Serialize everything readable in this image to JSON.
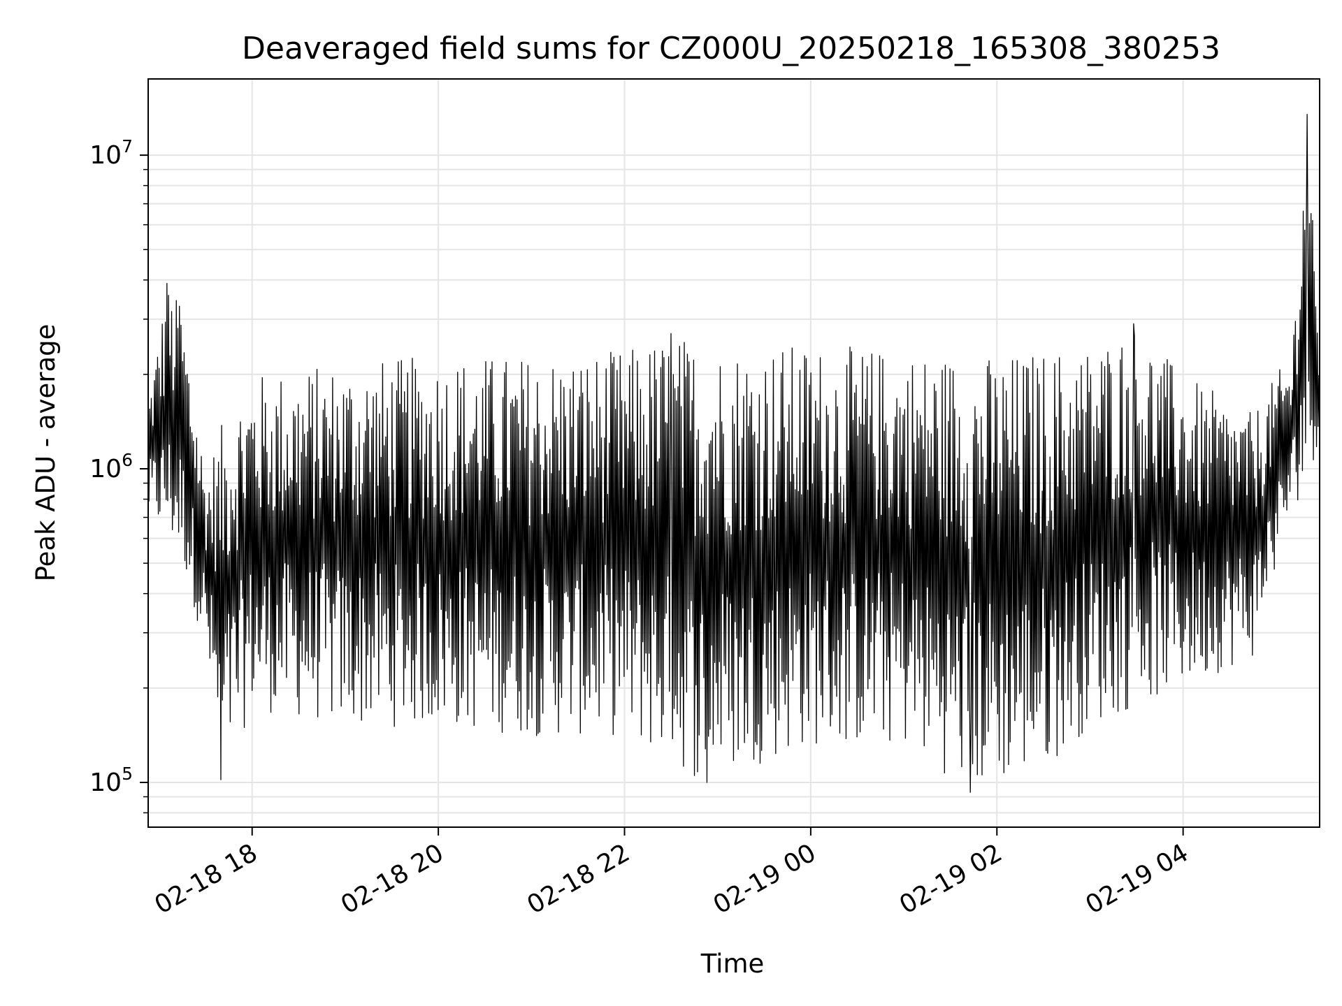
{
  "chart_data": {
    "type": "line",
    "title": "Deaveraged field sums for CZ000U_20250218_165308_380253",
    "xlabel": "Time",
    "ylabel": "Peak ADU - average",
    "xscale": "time",
    "yscale": "log",
    "grid": true,
    "legend": "none",
    "xlim": [
      "2025-02-18 16:53",
      "2025-02-19 05:28"
    ],
    "ylim": [
      72000,
      17500000
    ],
    "x_ticks": [
      "02-18 18",
      "02-18 20",
      "02-18 22",
      "02-19 00",
      "02-19 02",
      "02-19 04"
    ],
    "x_tick_times": [
      "2025-02-18 18:00",
      "2025-02-18 20:00",
      "2025-02-18 22:00",
      "2025-02-19 00:00",
      "2025-02-19 02:00",
      "2025-02-19 04:00"
    ],
    "y_ticks": [
      {
        "value": 100000,
        "base": "10",
        "exponent": "5"
      },
      {
        "value": 1000000,
        "base": "10",
        "exponent": "6"
      },
      {
        "value": 10000000,
        "base": "10",
        "exponent": "7"
      }
    ],
    "line_color": "#000000",
    "grid_color": "#e5e5e5",
    "series": [
      {
        "x_start": "2025-02-18 16:53",
        "x_end": "2025-02-19 05:28",
        "envelope_upper": [
          [
            "2025-02-18 16:53",
            1700000
          ],
          [
            "2025-02-18 17:05",
            3900000
          ],
          [
            "2025-02-18 17:15",
            3300000
          ],
          [
            "2025-02-18 17:30",
            1000000
          ],
          [
            "2025-02-18 17:45",
            1600000
          ],
          [
            "2025-02-18 18:00",
            2000000
          ],
          [
            "2025-02-18 19:00",
            2200000
          ],
          [
            "2025-02-18 20:00",
            2300000
          ],
          [
            "2025-02-18 21:00",
            2300000
          ],
          [
            "2025-02-18 22:00",
            2400000
          ],
          [
            "2025-02-18 22:30",
            2700000
          ],
          [
            "2025-02-18 23:00",
            2500000
          ],
          [
            "2025-02-19 00:00",
            2500000
          ],
          [
            "2025-02-19 01:00",
            2400000
          ],
          [
            "2025-02-19 02:00",
            2300000
          ],
          [
            "2025-02-19 03:00",
            2500000
          ],
          [
            "2025-02-19 03:30",
            2900000
          ],
          [
            "2025-02-19 04:00",
            2000000
          ],
          [
            "2025-02-19 04:45",
            1500000
          ],
          [
            "2025-02-19 05:10",
            2400000
          ],
          [
            "2025-02-19 05:20",
            13500000
          ],
          [
            "2025-02-19 05:28",
            2300000
          ]
        ],
        "envelope_lower": [
          [
            "2025-02-18 16:53",
            700000
          ],
          [
            "2025-02-18 17:15",
            500000
          ],
          [
            "2025-02-18 17:30",
            260000
          ],
          [
            "2025-02-18 17:40",
            100000
          ],
          [
            "2025-02-18 18:00",
            170000
          ],
          [
            "2025-02-18 19:00",
            150000
          ],
          [
            "2025-02-18 20:00",
            150000
          ],
          [
            "2025-02-18 21:00",
            140000
          ],
          [
            "2025-02-18 22:00",
            140000
          ],
          [
            "2025-02-18 22:50",
            100000
          ],
          [
            "2025-02-19 00:00",
            130000
          ],
          [
            "2025-02-19 01:00",
            130000
          ],
          [
            "2025-02-19 01:45",
            93000
          ],
          [
            "2025-02-19 02:30",
            110000
          ],
          [
            "2025-02-19 03:00",
            150000
          ],
          [
            "2025-02-19 04:00",
            200000
          ],
          [
            "2025-02-19 04:45",
            250000
          ],
          [
            "2025-02-19 05:05",
            600000
          ],
          [
            "2025-02-19 05:28",
            1200000
          ]
        ],
        "notable_points": [
          [
            "2025-02-18 17:05",
            3900000
          ],
          [
            "2025-02-18 17:13",
            3300000
          ],
          [
            "2025-02-18 17:40",
            102000
          ],
          [
            "2025-02-18 22:30",
            2700000
          ],
          [
            "2025-02-18 22:53",
            100000
          ],
          [
            "2025-02-19 01:43",
            93000
          ],
          [
            "2025-02-19 03:28",
            2900000
          ],
          [
            "2025-02-19 05:20",
            13500000
          ]
        ]
      }
    ]
  }
}
